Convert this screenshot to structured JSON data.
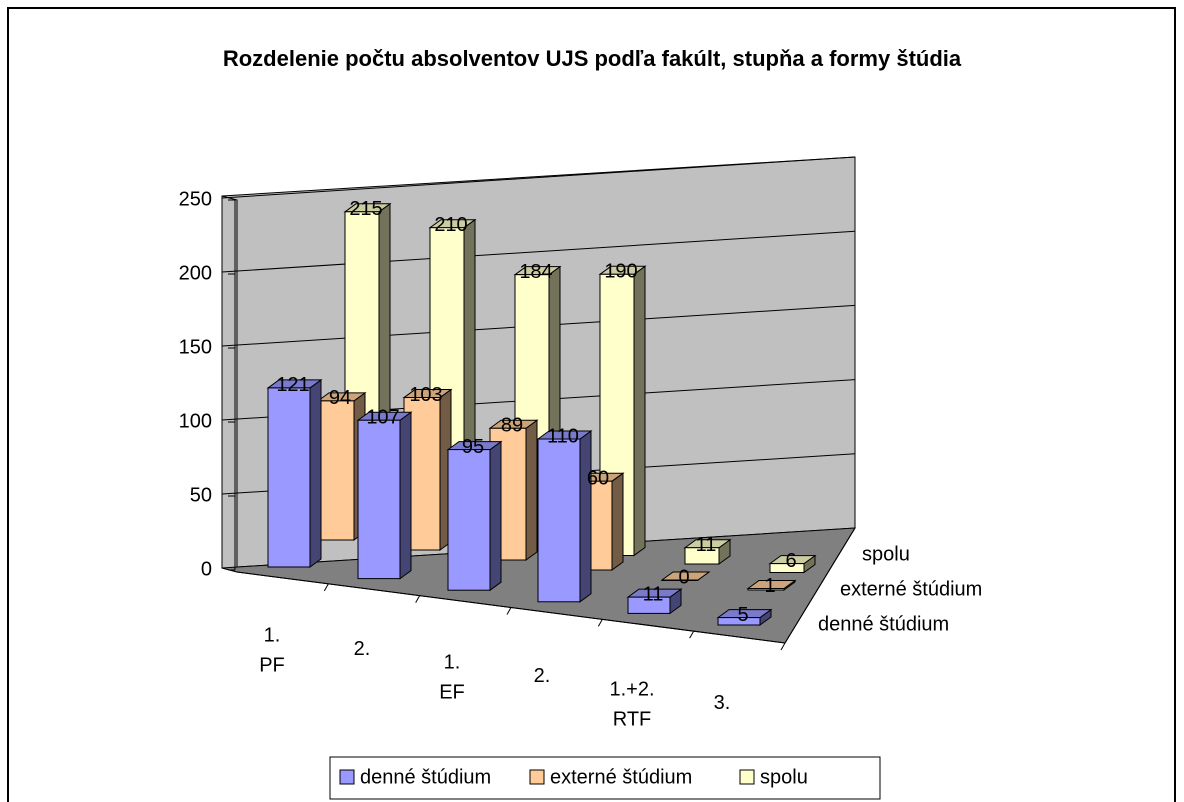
{
  "chart_data": {
    "type": "bar3d",
    "title": "Rozdelenie počtu absolventov UJS podľa fakúlt, stupňa a formy štúdia",
    "categories": [
      [
        "1.",
        "PF"
      ],
      [
        "2."
      ],
      [
        "1.",
        "EF"
      ],
      [
        "2."
      ],
      [
        "1.+2.",
        "RTF"
      ],
      [
        "3."
      ]
    ],
    "series": [
      {
        "name": "denné štúdium",
        "color": "#9999ff",
        "values": [
          121,
          107,
          95,
          110,
          11,
          5
        ]
      },
      {
        "name": "externé štúdium",
        "color": "#ffcc99",
        "values": [
          94,
          103,
          89,
          60,
          0,
          1
        ]
      },
      {
        "name": "spolu",
        "color": "#ffffcc",
        "values": [
          215,
          210,
          184,
          190,
          11,
          6
        ]
      }
    ],
    "ylim": [
      0,
      250
    ],
    "yticks": [
      0,
      50,
      100,
      150,
      200,
      250
    ],
    "grid": true,
    "legend": "bottom"
  }
}
